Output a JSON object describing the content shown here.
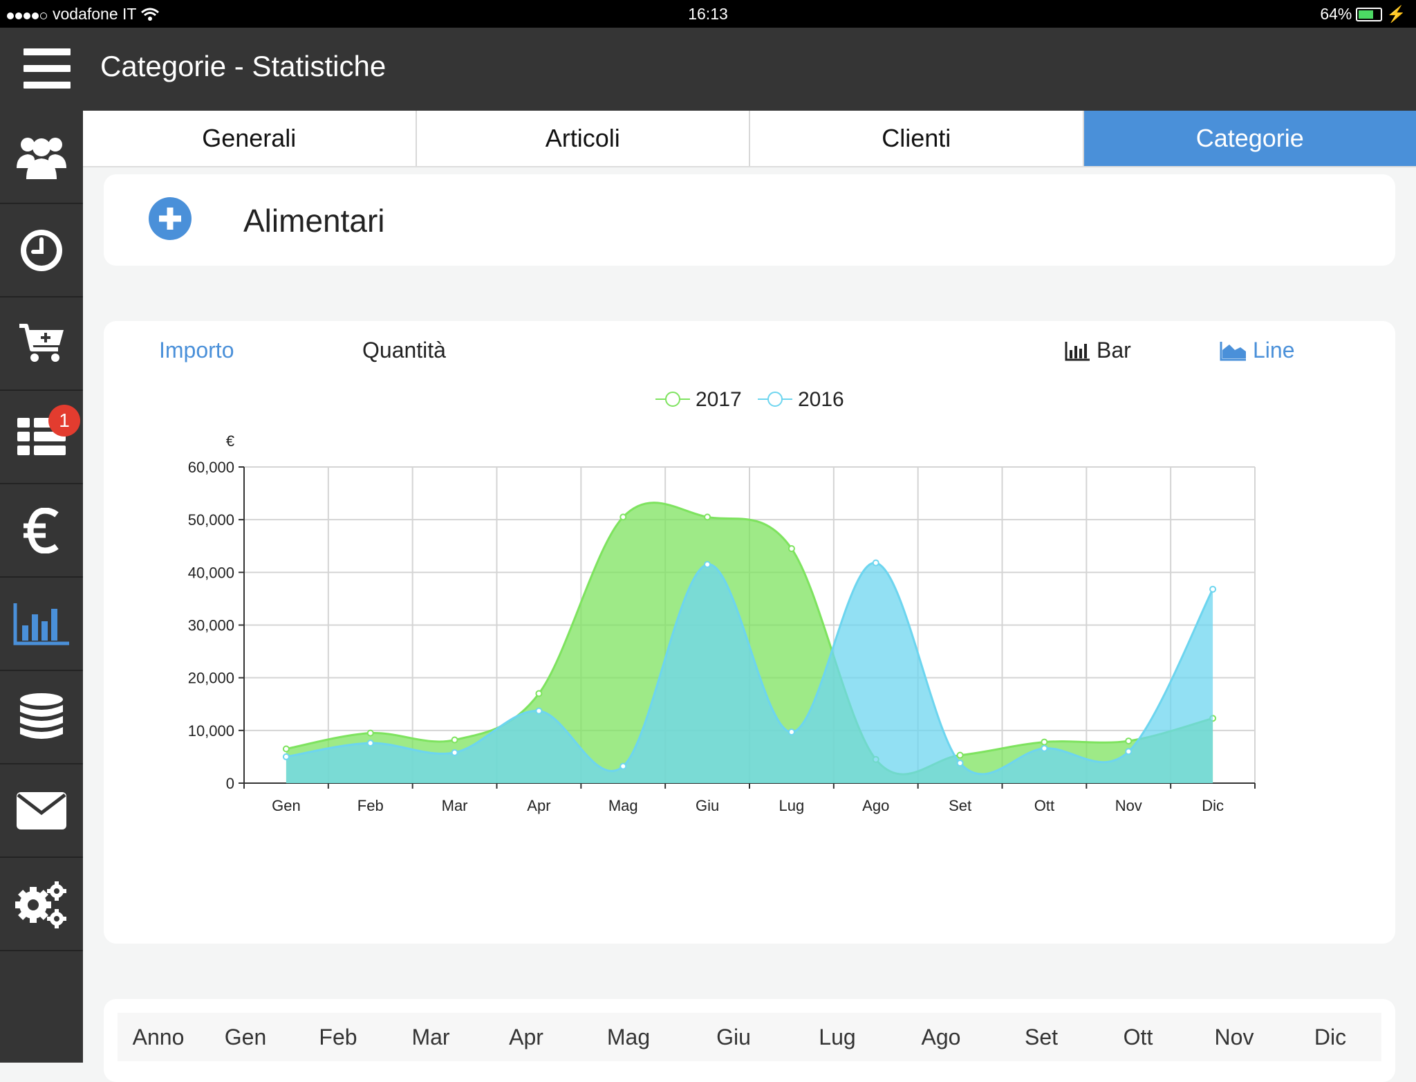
{
  "status_bar": {
    "carrier": "vodafone IT",
    "time": "16:13",
    "battery": "64%"
  },
  "header": {
    "title": "Categorie - Statistiche",
    "menu_icon": "hamburger-menu-icon"
  },
  "sidebar": {
    "items": [
      {
        "icon": "users-icon",
        "active": false
      },
      {
        "icon": "clock-icon",
        "active": false
      },
      {
        "icon": "cart-add-icon",
        "active": false
      },
      {
        "icon": "list-grid-icon",
        "active": false,
        "badge": "1"
      },
      {
        "icon": "euro-icon",
        "active": false
      },
      {
        "icon": "bar-chart-icon",
        "active": true
      },
      {
        "icon": "database-icon",
        "active": false
      },
      {
        "icon": "mail-icon",
        "active": false
      },
      {
        "icon": "settings-gears-icon",
        "active": false
      }
    ]
  },
  "tabs": [
    {
      "label": "Generali",
      "active": false
    },
    {
      "label": "Articoli",
      "active": false
    },
    {
      "label": "Clienti",
      "active": false
    },
    {
      "label": "Categorie",
      "active": true
    }
  ],
  "category": {
    "name": "Alimentari",
    "add_icon": "plus-circle-icon"
  },
  "chart_controls": {
    "metric_amount": "Importo",
    "metric_quantity": "Quantità",
    "type_bar": "Bar",
    "type_line": "Line",
    "selected_metric": "Importo",
    "selected_type": "Line"
  },
  "colors": {
    "accent": "#4a90d9",
    "series_2017": "#7ee35f",
    "series_2016": "#6dd5ef",
    "sidebar_bg": "#353535"
  },
  "chart_data": {
    "type": "area",
    "ylabel": "€",
    "ylim": [
      0,
      60000
    ],
    "yticks": [
      "0",
      "10,000",
      "20,000",
      "30,000",
      "40,000",
      "50,000",
      "60,000"
    ],
    "categories": [
      "Gen",
      "Feb",
      "Mar",
      "Apr",
      "Mag",
      "Giu",
      "Lug",
      "Ago",
      "Set",
      "Ott",
      "Nov",
      "Dic"
    ],
    "grid": true,
    "legend_position": "top-center",
    "series": [
      {
        "name": "2017",
        "values": [
          6500,
          9500,
          8200,
          17000,
          50500,
          50500,
          44500,
          4500,
          5300,
          7800,
          8000,
          12300
        ]
      },
      {
        "name": "2016",
        "values": [
          5000,
          7600,
          5800,
          13700,
          3200,
          41500,
          9700,
          41800,
          3800,
          6600,
          6000,
          36800
        ]
      }
    ]
  },
  "table": {
    "headers": [
      "Anno",
      "Gen",
      "Feb",
      "Mar",
      "Apr",
      "Mag",
      "Giu",
      "Lug",
      "Ago",
      "Set",
      "Ott",
      "Nov",
      "Dic"
    ]
  }
}
